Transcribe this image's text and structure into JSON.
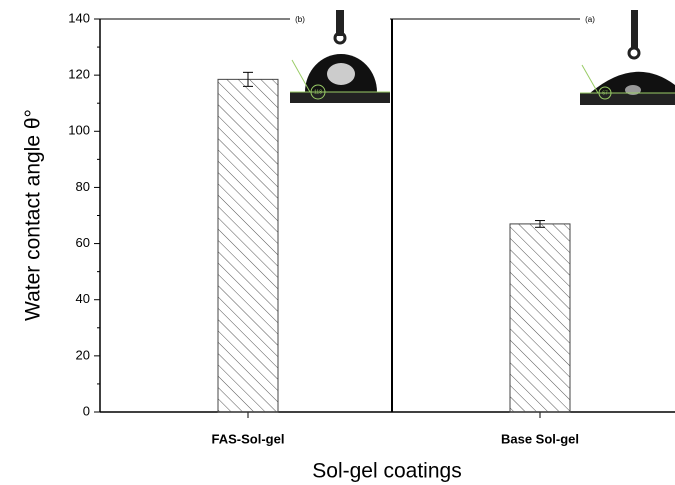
{
  "chart_data": {
    "type": "bar",
    "x_label": "Sol-gel coatings",
    "y_label": "Water contact angle θ°",
    "categories": [
      "FAS-Sol-gel",
      "Base Sol-gel"
    ],
    "values": [
      118.5,
      67
    ],
    "errors": [
      2.5,
      1.2
    ],
    "color": "#444444",
    "ylim": [
      0,
      140
    ],
    "yticks": [
      0,
      20,
      40,
      60,
      80,
      100,
      120,
      140
    ],
    "inset_labels": [
      "(b)",
      "(a)"
    ],
    "inset_angles": [
      118,
      67
    ]
  }
}
